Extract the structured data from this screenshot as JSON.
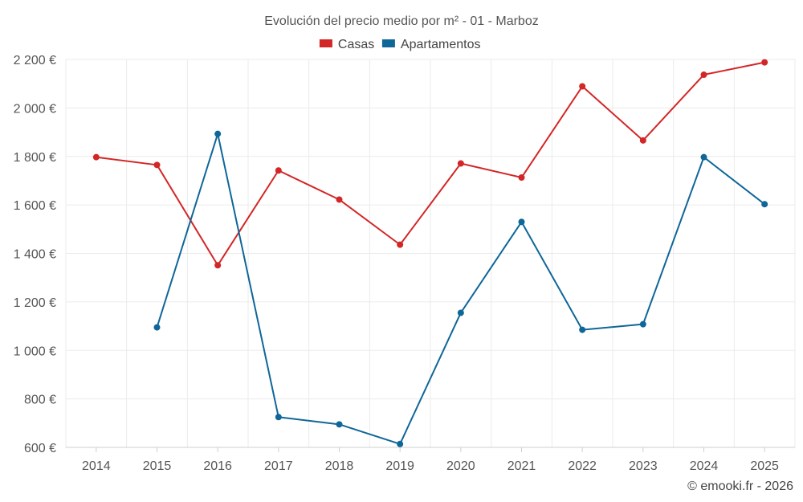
{
  "chart_data": {
    "type": "line",
    "title": "Evolución del precio medio por m² - 01 - Marboz",
    "categories": [
      "2014",
      "2015",
      "2016",
      "2017",
      "2018",
      "2019",
      "2020",
      "2021",
      "2022",
      "2023",
      "2024",
      "2025"
    ],
    "ylim": [
      600,
      2200
    ],
    "yticks": [
      600,
      800,
      1000,
      1200,
      1400,
      1600,
      1800,
      2000,
      2200
    ],
    "ytick_labels": [
      "600 €",
      "800 €",
      "1 000 €",
      "1 200 €",
      "1 400 €",
      "1 600 €",
      "1 800 €",
      "2 000 €",
      "2 200 €"
    ],
    "grid": true,
    "legend_position": "top-center",
    "series": [
      {
        "name": "Casas",
        "color": "#d32626",
        "values": [
          1797,
          1765,
          1351,
          1742,
          1622,
          1436,
          1771,
          1713,
          2089,
          1866,
          2137,
          2188
        ]
      },
      {
        "name": "Apartamentos",
        "color": "#0f6699",
        "values": [
          null,
          1095,
          1893,
          725,
          695,
          614,
          1155,
          1530,
          1085,
          1108,
          1797,
          1603
        ]
      }
    ]
  },
  "credit": "© emooki.fr - 2026"
}
